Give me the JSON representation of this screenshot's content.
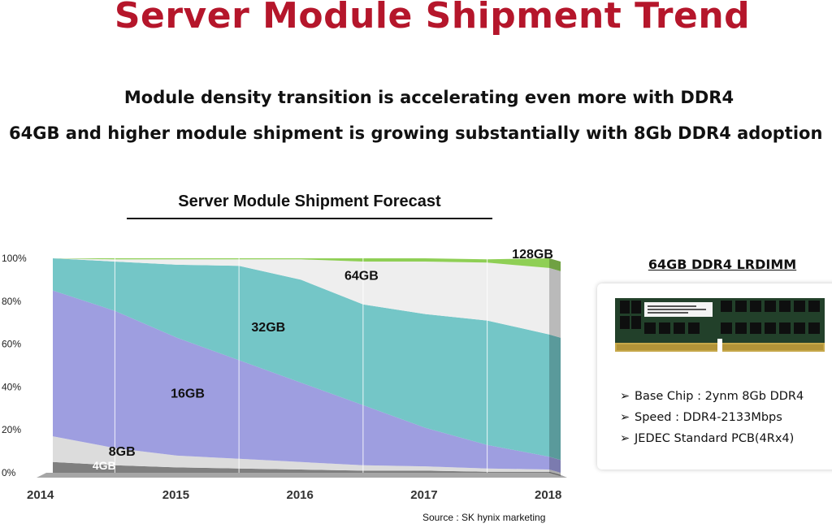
{
  "slide": {
    "title": "Server Module Shipment Trend",
    "bullets": [
      "Module density transition is accelerating even more with DDR4",
      "64GB and higher module shipment is growing substantially with 8Gb DDR4 adoption"
    ],
    "source": "Source : SK hynix marketing"
  },
  "product": {
    "title": "64GB DDR4 LRDIMM",
    "specs": [
      "Base Chip : 2ynm 8Gb DDR4",
      "Speed : DDR4-2133Mbps",
      "JEDEC Standard PCB(4Rx4)"
    ],
    "bullet_icon": "arrow-bullet-icon"
  },
  "chart_data": {
    "type": "area",
    "stacked": true,
    "title": "Server Module Shipment Forecast",
    "x": [
      2014.0,
      2014.5,
      2015.0,
      2015.5,
      2016.0,
      2016.5,
      2017.0,
      2017.5,
      2018.0
    ],
    "x_ticks": [
      "2014",
      "2015",
      "2016",
      "2017",
      "2018"
    ],
    "y_ticks": [
      "0%",
      "20%",
      "40%",
      "60%",
      "80%",
      "100%"
    ],
    "ylim": [
      0,
      100
    ],
    "series": [
      {
        "name": "4GB",
        "color": "#7f7f7f",
        "values": [
          5,
          3.5,
          2.5,
          2,
          1.5,
          1,
          1,
          0.5,
          0.5
        ]
      },
      {
        "name": "8GB",
        "color": "#dcdcdc",
        "values": [
          12,
          8,
          5.5,
          4.5,
          3.5,
          2.5,
          2,
          1.5,
          1
        ]
      },
      {
        "name": "16GB",
        "color": "#9e9ee0",
        "values": [
          68,
          64,
          55,
          46,
          37,
          28,
          18,
          11,
          6
        ]
      },
      {
        "name": "32GB",
        "color": "#74c6c7",
        "values": [
          15,
          23,
          34,
          44,
          48,
          47,
          53,
          58,
          57
        ]
      },
      {
        "name": "64GB",
        "color": "#eeeeee",
        "values": [
          0,
          1,
          2.5,
          3,
          9.5,
          20,
          24.5,
          27,
          31
        ]
      },
      {
        "name": "128GB",
        "color": "#8fcf55",
        "values": [
          0,
          0.5,
          0.5,
          0.5,
          0.5,
          1.5,
          1.5,
          1.5,
          4.5
        ]
      }
    ],
    "grid": false,
    "legend": "inline labels"
  }
}
